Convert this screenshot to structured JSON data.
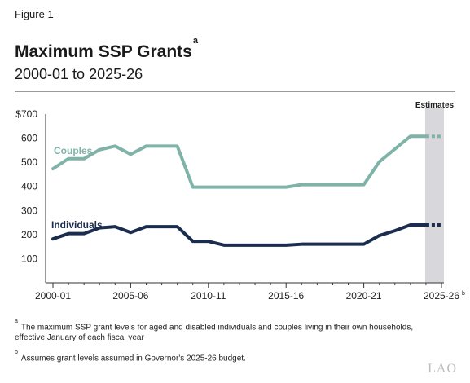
{
  "figure_label": "Figure 1",
  "title": "Maximum SSP Grants",
  "title_sup": "a",
  "subtitle": "2000-01 to 2025-26",
  "footnotes": {
    "a_marker": "a",
    "a_text": "The maximum SSP grant levels for aged and disabled individuals and couples living in their own households, effective January of each fiscal year",
    "b_marker": "b",
    "b_text": "Assumes grant levels assumed in Governor's 2025-26 budget."
  },
  "logo": "LAO",
  "colors": {
    "couples": "#7fb3a8",
    "individuals": "#1b2d4f",
    "estimates_band": "#d8d8dc",
    "axis": "#333333"
  },
  "chart_data": {
    "type": "line",
    "x": [
      "2000-01",
      "2001-02",
      "2002-03",
      "2003-04",
      "2004-05",
      "2005-06",
      "2006-07",
      "2007-08",
      "2008-09",
      "2009-10",
      "2010-11",
      "2011-12",
      "2012-13",
      "2013-14",
      "2014-15",
      "2015-16",
      "2016-17",
      "2017-18",
      "2018-19",
      "2019-20",
      "2020-21",
      "2021-22",
      "2022-23",
      "2023-24",
      "2024-25",
      "2025-26"
    ],
    "x_tick_labels": [
      "2000-01",
      "2005-06",
      "2010-11",
      "2015-16",
      "2020-21",
      "2025-26"
    ],
    "x_tick_label_suffix": {
      "2025-26": "b"
    },
    "y_tick_labels": [
      "$700",
      "600",
      "500",
      "400",
      "300",
      "200",
      "100"
    ],
    "y_ticks": [
      700,
      600,
      500,
      400,
      300,
      200,
      100
    ],
    "ylim": [
      0,
      700
    ],
    "series": [
      {
        "name": "Couples",
        "values": [
          473,
          515,
          515,
          552,
          567,
          533,
          567,
          567,
          567,
          397,
          397,
          397,
          397,
          397,
          397,
          397,
          407,
          407,
          407,
          407,
          407,
          502,
          555,
          608,
          608,
          608
        ]
      },
      {
        "name": "Individuals",
        "values": [
          182,
          204,
          204,
          228,
          233,
          209,
          233,
          233,
          233,
          172,
          172,
          156,
          156,
          156,
          156,
          156,
          160,
          160,
          160,
          160,
          160,
          196,
          216,
          240,
          240,
          240
        ]
      }
    ],
    "estimates_label": "Estimates",
    "estimates_from": "2024-25",
    "projected_from_index": 24,
    "grid": false
  }
}
